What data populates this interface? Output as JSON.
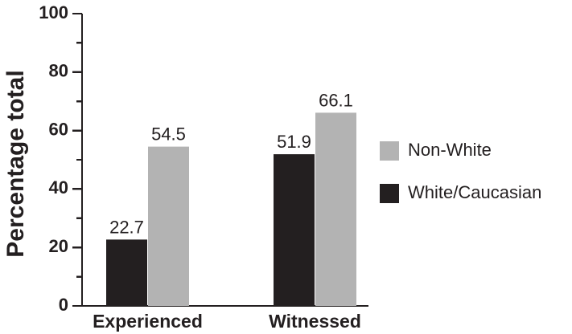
{
  "chart_data": {
    "type": "bar",
    "categories": [
      "Experienced",
      "Witnessed"
    ],
    "series": [
      {
        "name": "White/Caucasian",
        "color": "#231f20",
        "values": [
          22.7,
          51.9
        ],
        "labels": [
          "22.7",
          "51.9"
        ]
      },
      {
        "name": "Non-White",
        "color": "#b3b3b3",
        "values": [
          54.5,
          66.1
        ],
        "labels": [
          "54.5",
          "66.1"
        ]
      }
    ],
    "title": "",
    "xlabel": "",
    "ylabel": "Percentage total",
    "ylim": [
      0,
      100
    ],
    "yticks": [
      0,
      20,
      40,
      60,
      80,
      100
    ],
    "grid": false,
    "legend": {
      "placement": "right",
      "entries": [
        {
          "name": "Non-White",
          "color": "#b3b3b3"
        },
        {
          "name": "White/Caucasian",
          "color": "#231f20"
        }
      ]
    }
  }
}
